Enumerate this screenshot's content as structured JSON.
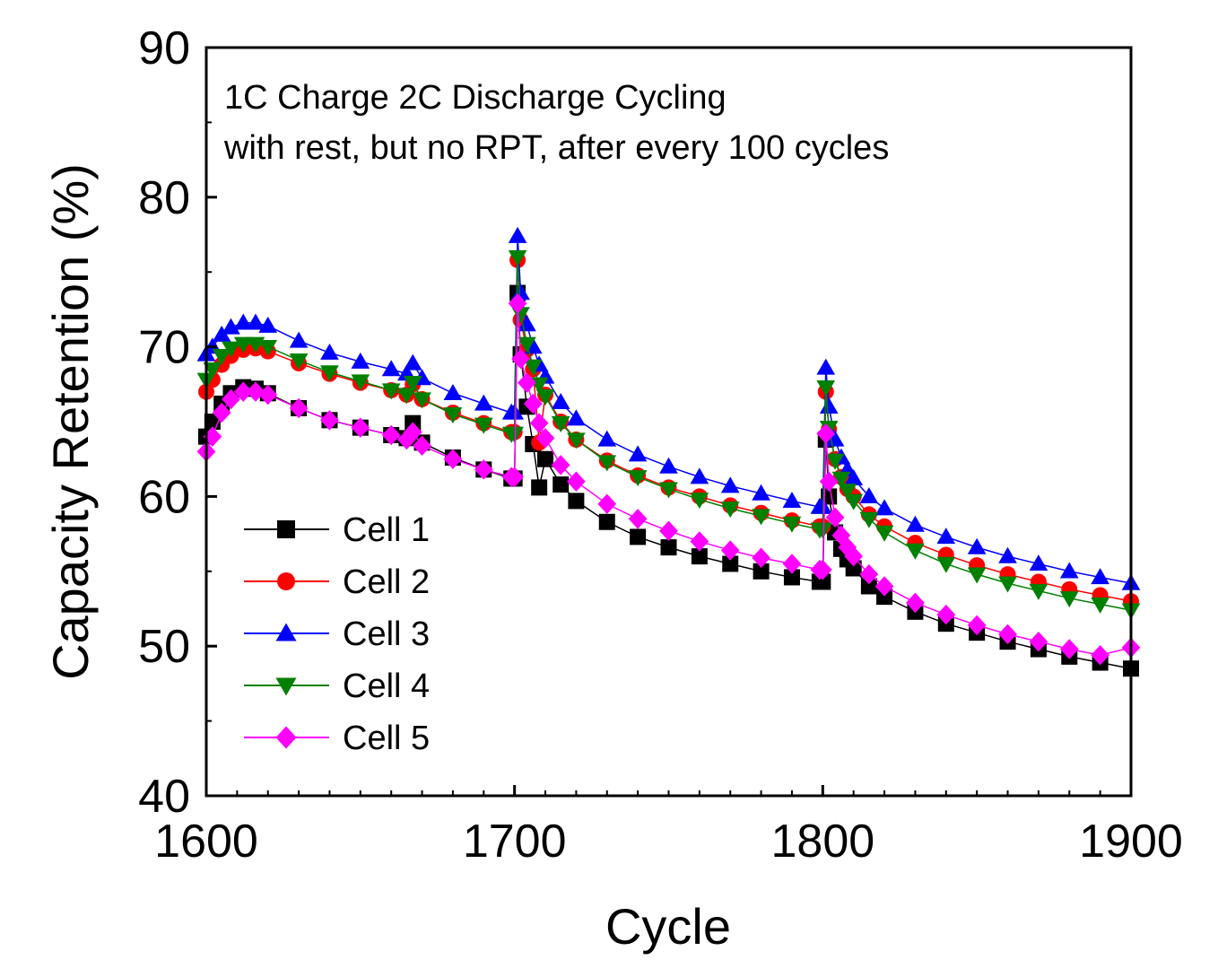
{
  "chart_data": {
    "type": "scatter",
    "title": "",
    "xlabel": "Cycle",
    "ylabel": "Capacity Retention (%)",
    "xlim": [
      1600,
      1900
    ],
    "ylim": [
      40,
      90
    ],
    "xticks": [
      1600,
      1700,
      1800,
      1900
    ],
    "yticks": [
      40,
      50,
      60,
      70,
      80,
      90
    ],
    "grid": false,
    "legend_position": "bottom-left",
    "annotation_lines": [
      "1C Charge 2C Discharge Cycling",
      "with rest, but no RPT, after every 100 cycles"
    ],
    "series": [
      {
        "name": "Cell 1",
        "color": "#000000",
        "marker": "square",
        "x": [
          1600,
          1602,
          1605,
          1608,
          1612,
          1616,
          1620,
          1630,
          1640,
          1650,
          1660,
          1665,
          1667,
          1670,
          1680,
          1690,
          1699,
          1700,
          1701,
          1702,
          1704,
          1706,
          1708,
          1710,
          1715,
          1720,
          1730,
          1740,
          1750,
          1760,
          1770,
          1780,
          1790,
          1799,
          1800,
          1801,
          1802,
          1804,
          1806,
          1808,
          1810,
          1815,
          1820,
          1830,
          1840,
          1850,
          1860,
          1870,
          1880,
          1890,
          1900
        ],
        "y": [
          64.0,
          65.0,
          66.2,
          66.9,
          67.3,
          67.2,
          66.9,
          65.9,
          65.1,
          64.6,
          64.1,
          63.9,
          64.9,
          63.6,
          62.6,
          61.8,
          61.2,
          61.2,
          73.6,
          69.5,
          66.0,
          63.5,
          60.6,
          62.5,
          60.8,
          59.7,
          58.3,
          57.3,
          56.6,
          56.0,
          55.5,
          55.0,
          54.6,
          54.3,
          54.3,
          63.8,
          60.0,
          57.6,
          56.5,
          55.8,
          55.2,
          54.0,
          53.3,
          52.3,
          51.5,
          50.9,
          50.3,
          49.8,
          49.3,
          48.9,
          48.5
        ]
      },
      {
        "name": "Cell 2",
        "color": "#ff0000",
        "marker": "circle",
        "x": [
          1600,
          1602,
          1605,
          1608,
          1612,
          1616,
          1620,
          1630,
          1640,
          1650,
          1660,
          1665,
          1667,
          1670,
          1680,
          1690,
          1699,
          1700,
          1701,
          1702,
          1704,
          1706,
          1708,
          1710,
          1715,
          1720,
          1730,
          1740,
          1750,
          1760,
          1770,
          1780,
          1790,
          1799,
          1800,
          1801,
          1802,
          1804,
          1806,
          1808,
          1810,
          1815,
          1820,
          1830,
          1840,
          1850,
          1860,
          1870,
          1880,
          1890,
          1900
        ],
        "y": [
          67.0,
          67.8,
          68.8,
          69.4,
          69.8,
          69.9,
          69.7,
          68.9,
          68.2,
          67.6,
          67.1,
          66.8,
          67.5,
          66.5,
          65.6,
          64.9,
          64.3,
          64.3,
          75.8,
          71.8,
          69.8,
          68.5,
          63.6,
          66.8,
          65.0,
          63.8,
          62.4,
          61.4,
          60.6,
          60.0,
          59.4,
          58.9,
          58.4,
          58.0,
          58.0,
          67.0,
          64.5,
          62.5,
          61.3,
          60.5,
          60.0,
          58.8,
          58.0,
          56.9,
          56.1,
          55.4,
          54.8,
          54.3,
          53.8,
          53.4,
          53.0
        ]
      },
      {
        "name": "Cell 3",
        "color": "#0000ff",
        "marker": "triangle-up",
        "x": [
          1600,
          1602,
          1605,
          1608,
          1612,
          1616,
          1620,
          1630,
          1640,
          1650,
          1660,
          1665,
          1667,
          1670,
          1680,
          1690,
          1699,
          1700,
          1701,
          1702,
          1704,
          1706,
          1708,
          1710,
          1715,
          1720,
          1730,
          1740,
          1750,
          1760,
          1770,
          1780,
          1790,
          1799,
          1800,
          1801,
          1802,
          1804,
          1806,
          1808,
          1810,
          1815,
          1820,
          1830,
          1840,
          1850,
          1860,
          1870,
          1880,
          1890,
          1900
        ],
        "y": [
          69.5,
          70.0,
          70.8,
          71.3,
          71.6,
          71.6,
          71.4,
          70.4,
          69.6,
          69.0,
          68.5,
          68.2,
          68.9,
          67.9,
          66.9,
          66.2,
          65.6,
          65.6,
          77.4,
          73.6,
          71.5,
          70.0,
          68.8,
          68.0,
          66.3,
          65.2,
          63.8,
          62.8,
          62.0,
          61.3,
          60.7,
          60.2,
          59.7,
          59.3,
          59.3,
          68.6,
          66.0,
          63.8,
          62.6,
          61.8,
          61.2,
          60.0,
          59.2,
          58.1,
          57.3,
          56.6,
          56.0,
          55.5,
          55.0,
          54.6,
          54.2
        ]
      },
      {
        "name": "Cell 4",
        "color": "#008000",
        "marker": "triangle-down",
        "x": [
          1600,
          1602,
          1605,
          1608,
          1612,
          1616,
          1620,
          1630,
          1640,
          1650,
          1660,
          1665,
          1667,
          1670,
          1680,
          1690,
          1699,
          1700,
          1701,
          1702,
          1704,
          1706,
          1708,
          1710,
          1715,
          1720,
          1730,
          1740,
          1750,
          1760,
          1770,
          1780,
          1790,
          1799,
          1800,
          1801,
          1802,
          1804,
          1806,
          1808,
          1810,
          1815,
          1820,
          1830,
          1840,
          1850,
          1860,
          1870,
          1880,
          1890,
          1900
        ],
        "y": [
          67.8,
          68.5,
          69.4,
          69.9,
          70.2,
          70.2,
          70.0,
          69.1,
          68.3,
          67.7,
          67.1,
          66.8,
          67.6,
          66.5,
          65.5,
          64.8,
          64.2,
          64.2,
          76.0,
          72.2,
          70.2,
          68.7,
          67.5,
          66.7,
          64.9,
          63.8,
          62.3,
          61.3,
          60.5,
          59.8,
          59.2,
          58.7,
          58.2,
          57.8,
          57.8,
          67.3,
          64.6,
          62.4,
          61.2,
          60.4,
          59.7,
          58.5,
          57.6,
          56.4,
          55.5,
          54.8,
          54.2,
          53.7,
          53.2,
          52.8,
          52.4
        ]
      },
      {
        "name": "Cell 5",
        "color": "#ff00ff",
        "marker": "diamond",
        "x": [
          1600,
          1602,
          1605,
          1608,
          1612,
          1616,
          1620,
          1630,
          1640,
          1650,
          1660,
          1665,
          1667,
          1670,
          1680,
          1690,
          1699,
          1700,
          1701,
          1702,
          1704,
          1706,
          1708,
          1710,
          1715,
          1720,
          1730,
          1740,
          1750,
          1760,
          1770,
          1780,
          1790,
          1799,
          1800,
          1801,
          1802,
          1804,
          1806,
          1808,
          1810,
          1815,
          1820,
          1830,
          1840,
          1850,
          1860,
          1870,
          1880,
          1890,
          1900
        ],
        "y": [
          63.0,
          64.0,
          65.6,
          66.5,
          67.0,
          67.0,
          66.8,
          65.9,
          65.1,
          64.6,
          64.1,
          63.8,
          64.3,
          63.4,
          62.5,
          61.8,
          61.3,
          61.3,
          72.9,
          69.2,
          67.6,
          66.2,
          64.9,
          63.9,
          62.1,
          61.0,
          59.5,
          58.5,
          57.7,
          57.0,
          56.4,
          55.9,
          55.5,
          55.1,
          55.1,
          64.2,
          61.0,
          58.6,
          57.4,
          56.6,
          56.0,
          54.8,
          54.0,
          52.9,
          52.1,
          51.4,
          50.8,
          50.3,
          49.8,
          49.4,
          49.9
        ]
      }
    ]
  }
}
